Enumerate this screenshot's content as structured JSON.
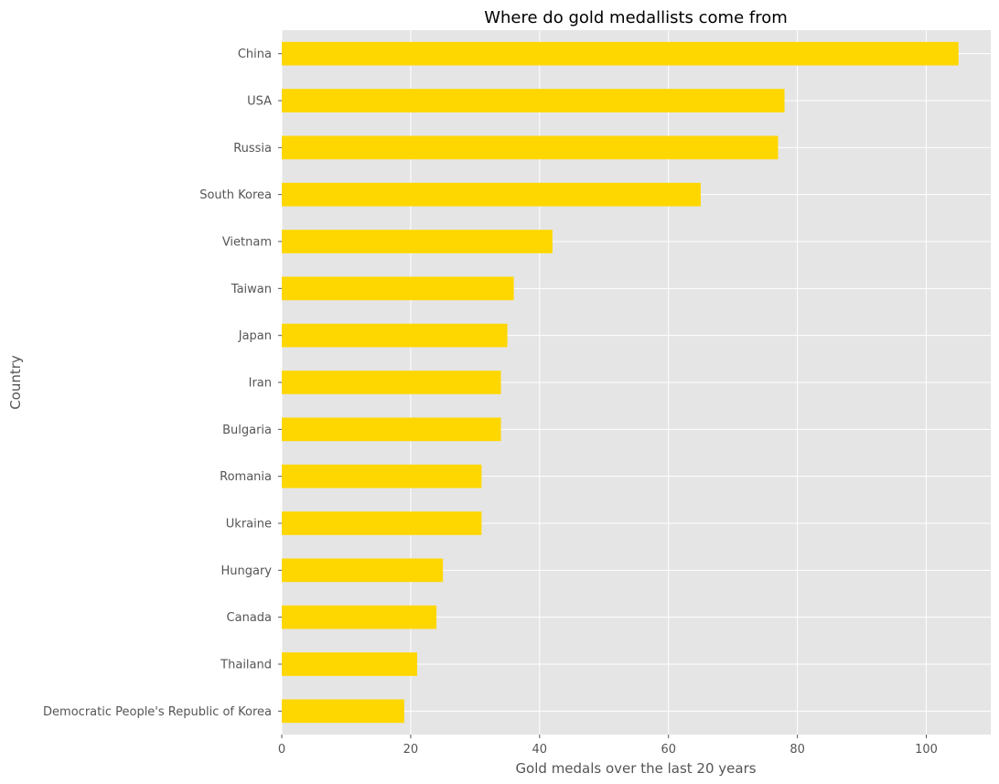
{
  "chart_data": {
    "type": "bar",
    "orientation": "horizontal",
    "title": "Where do gold medallists come from",
    "xlabel": "Gold medals over the last 20 years",
    "ylabel": "Country",
    "xlim": [
      0,
      110
    ],
    "xticks": [
      "0",
      "20",
      "40",
      "60",
      "80",
      "100"
    ],
    "grid": true,
    "legend": "none",
    "bar_color": "#FFD700",
    "background_color": "#E5E5E5",
    "categories": [
      "China",
      "USA",
      "Russia",
      "South Korea",
      "Vietnam",
      "Taiwan",
      "Japan",
      "Iran",
      "Bulgaria",
      "Romania",
      "Ukraine",
      "Hungary",
      "Canada",
      "Thailand",
      "Democratic People's Republic of Korea"
    ],
    "values": [
      105,
      78,
      77,
      65,
      42,
      36,
      35,
      34,
      34,
      31,
      31,
      25,
      24,
      21,
      19
    ]
  }
}
